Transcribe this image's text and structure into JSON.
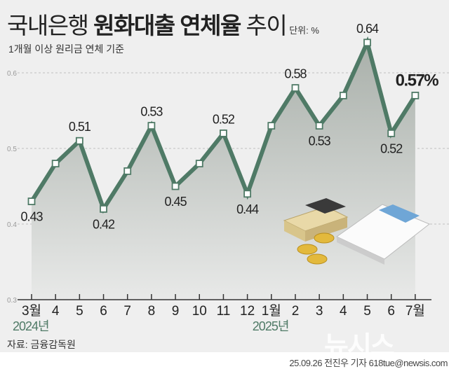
{
  "header": {
    "title_plain": "국내은행 ",
    "title_bold": "원화대출 연체율",
    "title_tail": " 추이",
    "unit": "단위: %",
    "subtitle": "1개월 이상 원리금 연체 기준"
  },
  "footer": {
    "source": "자료: 금융감독원",
    "credit": "25.09.26 전진우 기자 618tue@newsis.com",
    "logo": "뉴시스"
  },
  "colors": {
    "line": "#4f7a66",
    "year": "#4f7a66",
    "background": "#efefef"
  },
  "chart_data": {
    "type": "area",
    "title": "국내은행 원화대출 연체율 추이",
    "ylabel": "%",
    "ylim": [
      0.3,
      0.65
    ],
    "yticks": [
      "0.3",
      "0.4",
      "0.5",
      "0.6"
    ],
    "categories": [
      "3월",
      "4",
      "5",
      "6",
      "7",
      "8",
      "9",
      "10",
      "11",
      "12",
      "1월",
      "2",
      "3",
      "4",
      "5",
      "6",
      "7월"
    ],
    "years": [
      {
        "label": "2024년",
        "start_index": 0
      },
      {
        "label": "2025년",
        "start_index": 10
      }
    ],
    "values": [
      0.43,
      0.48,
      0.51,
      0.42,
      0.47,
      0.53,
      0.45,
      0.48,
      0.52,
      0.44,
      0.53,
      0.58,
      0.53,
      0.57,
      0.64,
      0.52,
      0.57
    ],
    "labels": [
      {
        "index": 0,
        "text": "0.43",
        "pos": "below"
      },
      {
        "index": 2,
        "text": "0.51",
        "pos": "above"
      },
      {
        "index": 3,
        "text": "0.42",
        "pos": "below"
      },
      {
        "index": 5,
        "text": "0.53",
        "pos": "above"
      },
      {
        "index": 6,
        "text": "0.45",
        "pos": "below"
      },
      {
        "index": 8,
        "text": "0.52",
        "pos": "above"
      },
      {
        "index": 9,
        "text": "0.44",
        "pos": "below"
      },
      {
        "index": 11,
        "text": "0.58",
        "pos": "above"
      },
      {
        "index": 12,
        "text": "0.53",
        "pos": "below"
      },
      {
        "index": 14,
        "text": "0.64",
        "pos": "above"
      },
      {
        "index": 15,
        "text": "0.52",
        "pos": "below"
      },
      {
        "index": 16,
        "text": "0.57%",
        "pos": "highlight"
      }
    ]
  }
}
